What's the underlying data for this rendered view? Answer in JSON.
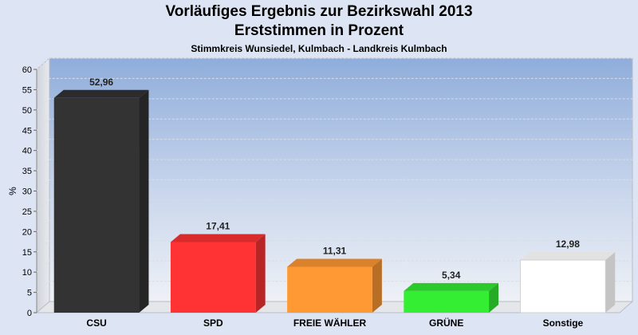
{
  "chart_data": {
    "type": "bar",
    "title": "Vorläufiges Ergebnis zur Bezirkswahl 2013",
    "subtitle": "Erststimmen in Prozent",
    "subtitle2": "Stimmkreis Wunsiedel, Kulmbach - Landkreis Kulmbach",
    "xlabel": "",
    "ylabel": "%",
    "ylim": [
      0,
      60
    ],
    "yticks": [
      0,
      5,
      10,
      15,
      20,
      25,
      30,
      35,
      40,
      45,
      50,
      55,
      60
    ],
    "grid": true,
    "categories": [
      "CSU",
      "SPD",
      "FREIE WÄHLER",
      "GRÜNE",
      "Sonstige"
    ],
    "values": [
      52.96,
      17.41,
      11.31,
      5.34,
      12.98
    ],
    "value_labels": [
      "52,96",
      "17,41",
      "11,31",
      "5,34",
      "12,98"
    ],
    "colors": [
      "#333333",
      "#ff3333",
      "#ff9933",
      "#33ee33",
      "#ffffff"
    ]
  }
}
